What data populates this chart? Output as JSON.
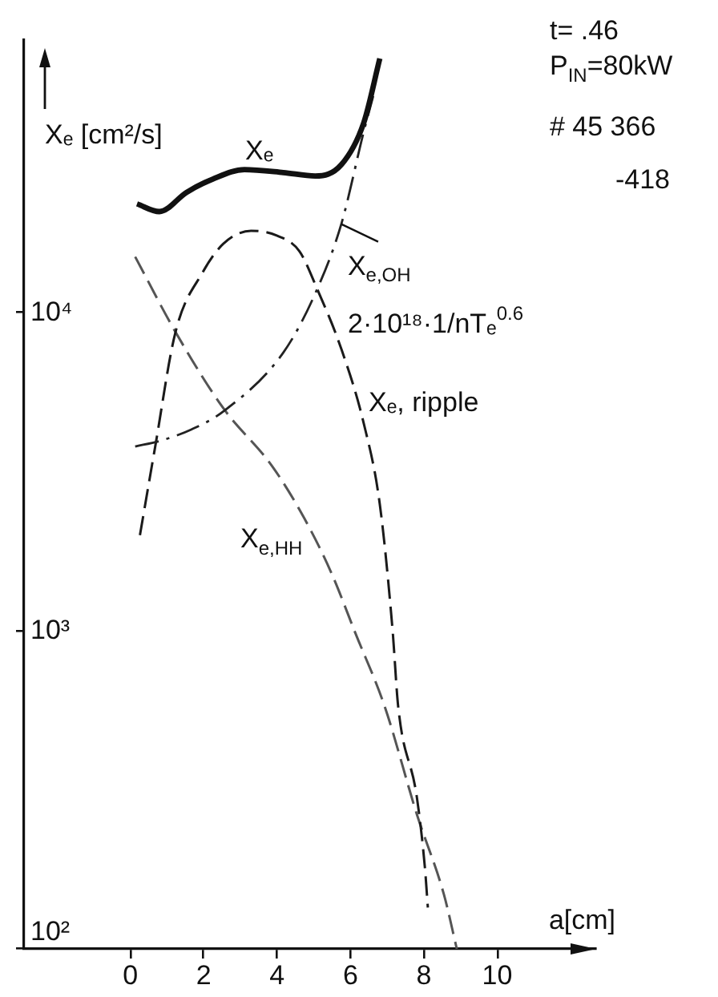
{
  "chart_data": {
    "type": "line",
    "xlabel": "a[cm]",
    "ylabel": "Xₑ [cm²/s]",
    "log": "y",
    "xlim": [
      -2.9,
      12.7
    ],
    "xticks": [
      0,
      2,
      4,
      6,
      8,
      10
    ],
    "ylim": [
      100,
      72000
    ],
    "yticks": [
      {
        "value": 100,
        "label": "10²"
      },
      {
        "value": 1000,
        "label": "10³"
      },
      {
        "value": 10000,
        "label": "10⁴"
      }
    ],
    "grid": false,
    "legend": false,
    "marker": "none",
    "series": [
      {
        "name": "Xₑ",
        "color": "#111111",
        "line_style": "solid",
        "x": [
          0.18,
          0.79,
          1.53,
          2.24,
          3.11,
          4.17,
          5.04,
          5.75,
          6.36,
          6.8
        ],
        "values": [
          22000,
          20800,
          23900,
          26300,
          28200,
          27600,
          26900,
          29200,
          39500,
          63000
        ]
      },
      {
        "color": "#222222",
        "line_style": "dashdot",
        "x": [
          0.13,
          0.79,
          1.67,
          2.54,
          4.17,
          5.04,
          5.75,
          6.36,
          6.62
        ],
        "values": [
          3800,
          3950,
          4300,
          4900,
          7500,
          11500,
          19000,
          37000,
          48000
        ]
      },
      {
        "name": "Xₑ, ripple",
        "color": "#1a1a1a",
        "line_style": "dashed",
        "x": [
          0.26,
          0.66,
          1.23,
          1.97,
          2.54,
          3.29,
          3.99,
          4.61,
          5.09,
          5.75,
          6.36,
          6.8,
          7.15,
          7.3,
          7.81,
          8.03,
          8.11
        ],
        "values": [
          2000,
          3700,
          8700,
          13400,
          16500,
          18100,
          17500,
          15600,
          11900,
          7700,
          4500,
          2500,
          1000,
          580,
          300,
          180,
          135
        ]
      },
      {
        "name": "X$_{e,HH}$",
        "color": "#555555",
        "line_style": "dashed",
        "x": [
          0.13,
          1.23,
          2.54,
          3.86,
          4.74,
          5.48,
          6.14,
          6.93,
          7.81,
          8.55,
          8.9
        ],
        "values": [
          15000,
          8700,
          5000,
          3300,
          2260,
          1520,
          980,
          580,
          265,
          148,
          100
        ]
      }
    ],
    "annotations": [
      {
        "text": "X$_{e,OH}$",
        "x": 5.75,
        "y": 19000
      },
      "2·10¹⁸·1/nTₑ$^{0.6}$",
      "t= .46",
      "P$_{IN}$=80kW",
      "# 45 366",
      "-418"
    ]
  }
}
